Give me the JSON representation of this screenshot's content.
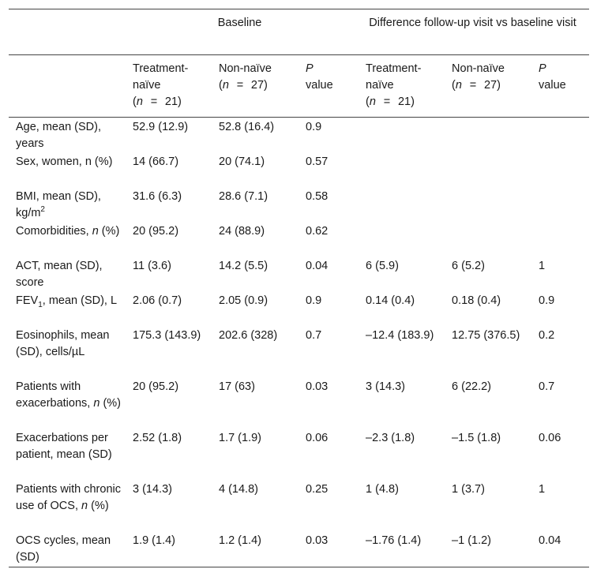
{
  "header": {
    "group_baseline": "Baseline",
    "group_difference": "Difference follow-up visit vs baseline visit",
    "col_treatment": "Treatment-naïve",
    "col_non_naive": "Non-naïve",
    "col_p_italic": "P",
    "col_p_rest": "value",
    "n_italic": "n",
    "n_eq": "=",
    "n_treatment": "21)",
    "n_non_naive": "27)"
  },
  "rows": [
    {
      "label": "Age, mean (SD), years",
      "b_tn": "52.9 (12.9)",
      "b_nn": "52.8 (16.4)",
      "b_p": "0.9",
      "d_tn": "",
      "d_nn": "",
      "d_p": ""
    },
    {
      "label": "Sex, women, n (%)",
      "b_tn": "14 (66.7)",
      "b_nn": "20 (74.1)",
      "b_p": "0.57",
      "d_tn": "",
      "d_nn": "",
      "d_p": ""
    },
    {
      "label_pre": "BMI, mean (SD), kg/m",
      "label_sup": "2",
      "b_tn": "31.6 (6.3)",
      "b_nn": "28.6 (7.1)",
      "b_p": "0.58",
      "d_tn": "",
      "d_nn": "",
      "d_p": ""
    },
    {
      "label_pre": "Comorbidities, ",
      "label_it": "n",
      "label_post": " (%)",
      "b_tn": "20 (95.2)",
      "b_nn": "24 (88.9)",
      "b_p": "0.62",
      "d_tn": "",
      "d_nn": "",
      "d_p": ""
    },
    {
      "label": "ACT, mean (SD), score",
      "b_tn": "11 (3.6)",
      "b_nn": "14.2 (5.5)",
      "b_p": "0.04",
      "d_tn": "6 (5.9)",
      "d_nn": "6 (5.2)",
      "d_p": "1"
    },
    {
      "label_pre": "FEV",
      "label_sub": "1",
      "label_post": ", mean (SD), L",
      "b_tn": "2.06 (0.7)",
      "b_nn": "2.05 (0.9)",
      "b_p": "0.9",
      "d_tn": "0.14 (0.4)",
      "d_nn": "0.18 (0.4)",
      "d_p": "0.9"
    },
    {
      "label": "Eosinophils, mean (SD), cells/µL",
      "b_tn": "175.3 (143.9)",
      "b_nn": "202.6 (328)",
      "b_p": "0.7",
      "d_tn": "–12.4 (183.9)",
      "d_nn": "12.75 (376.5)",
      "d_p": "0.2"
    },
    {
      "label_pre": "Patients with exacerbations, ",
      "label_it": "n",
      "label_post": " (%)",
      "b_tn": "20 (95.2)",
      "b_nn": "17 (63)",
      "b_p": "0.03",
      "d_tn": "3 (14.3)",
      "d_nn": "6 (22.2)",
      "d_p": "0.7"
    },
    {
      "label": "Exacerbations per patient, mean (SD)",
      "b_tn": "2.52 (1.8)",
      "b_nn": "1.7 (1.9)",
      "b_p": "0.06",
      "d_tn": "–2.3 (1.8)",
      "d_nn": "–1.5 (1.8)",
      "d_p": "0.06"
    },
    {
      "label_pre": "Patients with chronic use of OCS, ",
      "label_it": "n",
      "label_post": " (%)",
      "b_tn": "3 (14.3)",
      "b_nn": "4 (14.8)",
      "b_p": "0.25",
      "d_tn": "1 (4.8)",
      "d_nn": "1 (3.7)",
      "d_p": "1"
    },
    {
      "label": "OCS cycles, mean (SD)",
      "b_tn": "1.9 (1.4)",
      "b_nn": "1.2 (1.4)",
      "b_p": "0.03",
      "d_tn": "–1.76 (1.4)",
      "d_nn": "–1 (1.2)",
      "d_p": "0.04"
    }
  ]
}
